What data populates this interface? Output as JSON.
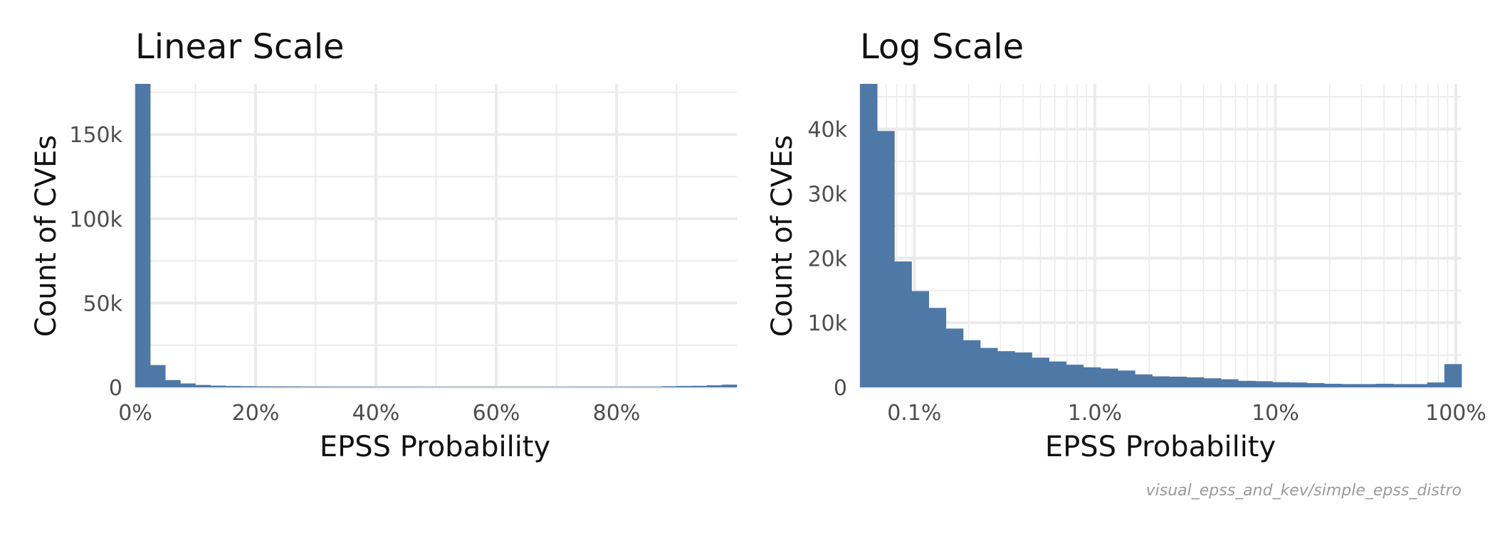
{
  "colors": {
    "bar": "#4e79a7",
    "grid": "#ebebeb",
    "text": "#111111",
    "tick_text": "#4d4d4d",
    "caption": "#9a9a9a"
  },
  "caption": "visual_epss_and_kev/simple_epss_distro",
  "chart_data": [
    {
      "type": "bar",
      "panel": "linear",
      "title": "Linear Scale",
      "xlabel": "EPSS Probability",
      "ylabel": "Count of CVEs",
      "x_scale": "linear",
      "xlim": [
        0,
        1
      ],
      "ylim": [
        0,
        180000
      ],
      "grid": true,
      "bin_width": 0.025,
      "x_ticks": [
        0,
        0.2,
        0.4,
        0.6,
        0.8
      ],
      "x_tick_labels": [
        "0%",
        "20%",
        "40%",
        "60%",
        "80%"
      ],
      "y_ticks": [
        0,
        50000,
        100000,
        150000
      ],
      "y_tick_labels": [
        "0",
        "50k",
        "100k",
        "150k"
      ],
      "x_minor_ticks": [
        0.1,
        0.3,
        0.5,
        0.7,
        0.9
      ],
      "y_minor_ticks": [
        25000,
        75000,
        125000,
        175000
      ],
      "values": [
        180000,
        13200,
        4300,
        2300,
        1400,
        1000,
        800,
        650,
        550,
        500,
        450,
        400,
        380,
        360,
        340,
        320,
        300,
        290,
        280,
        270,
        260,
        250,
        250,
        250,
        250,
        250,
        250,
        260,
        270,
        280,
        290,
        300,
        320,
        340,
        360,
        600,
        800,
        900,
        1200,
        1600
      ]
    },
    {
      "type": "bar",
      "panel": "log",
      "title": "Log Scale",
      "xlabel": "EPSS Probability",
      "ylabel": "Count of CVEs",
      "x_scale": "log",
      "xlim": [
        0.0005,
        1
      ],
      "ylim": [
        0,
        47000
      ],
      "grid": true,
      "x_ticks": [
        0.001,
        0.01,
        0.1,
        1
      ],
      "x_tick_labels": [
        "0.1%",
        "1.0%",
        "10%",
        "100%"
      ],
      "y_ticks": [
        0,
        10000,
        20000,
        30000,
        40000
      ],
      "y_tick_labels": [
        "0",
        "10k",
        "20k",
        "30k",
        "40k"
      ],
      "y_minor_ticks": [
        5000,
        15000,
        25000,
        35000,
        45000
      ],
      "bins": [
        {
          "start": 0.0005,
          "end": 0.000687,
          "value": 47000
        },
        {
          "start": 0.000687,
          "end": 0.000944,
          "value": 39700
        },
        {
          "start": 0.000944,
          "end": 0.001297,
          "value": 19500
        },
        {
          "start": 0.001297,
          "end": 0.001782,
          "value": 14900
        },
        {
          "start": 0.001782,
          "end": 0.002449,
          "value": 12300
        },
        {
          "start": 0.002449,
          "end": 0.003365,
          "value": 9100
        },
        {
          "start": 0.003365,
          "end": 0.004624,
          "value": 7300
        },
        {
          "start": 0.004624,
          "end": 0.006354,
          "value": 6100
        },
        {
          "start": 0.006354,
          "end": 0.008731,
          "value": 5600
        },
        {
          "start": 0.008731,
          "end": 0.011998,
          "value": 5400
        },
        {
          "start": 0.011998,
          "end": 0.016487,
          "value": 4600
        },
        {
          "start": 0.016487,
          "end": 0.022656,
          "value": 4000
        },
        {
          "start": 0.022656,
          "end": 0.031133,
          "value": 3500
        },
        {
          "start": 0.031133,
          "end": 0.042781,
          "value": 3100
        },
        {
          "start": 0.042781,
          "end": 0.058788,
          "value": 2900
        },
        {
          "start": 0.058788,
          "end": 0.080784,
          "value": 2600
        },
        {
          "start": 0.080784,
          "end": 0.111009,
          "value": 2000
        },
        {
          "start": 0.111009,
          "end": 0.152544,
          "value": 1700
        },
        {
          "start": 0.152544,
          "end": 0.20962,
          "value": 1650
        },
        {
          "start": 0.20962,
          "end": 0.288051,
          "value": 1550
        },
        {
          "start": 0.288051,
          "end": 0.395828,
          "value": 1400
        },
        {
          "start": 0.395828,
          "end": 0.543929,
          "value": 1250
        },
        {
          "start": 0.543929,
          "end": 0.747444,
          "value": 1000
        },
        {
          "start": 0.747444,
          "end": 1.0,
          "value": 950
        }
      ],
      "bins_extra": [
        {
          "start": 1.0,
          "end": 1.374,
          "value": 800
        },
        {
          "start": 1.374,
          "end": 1.888,
          "value": 750
        },
        {
          "start": 1.888,
          "end": 2.594,
          "value": 650
        },
        {
          "start": 2.594,
          "end": 3.565,
          "value": 550
        },
        {
          "start": 3.565,
          "end": 4.899,
          "value": 500
        },
        {
          "start": 4.899,
          "end": 6.732,
          "value": 500
        },
        {
          "start": 6.732,
          "end": 9.25,
          "value": 550
        },
        {
          "start": 9.25,
          "end": 12.711,
          "value": 500
        },
        {
          "start": 12.711,
          "end": 17.467,
          "value": 500
        },
        {
          "start": 17.467,
          "end": 24.0,
          "value": 750
        },
        {
          "start": 24.0,
          "end": 28.0,
          "value": 3600
        }
      ]
    }
  ]
}
